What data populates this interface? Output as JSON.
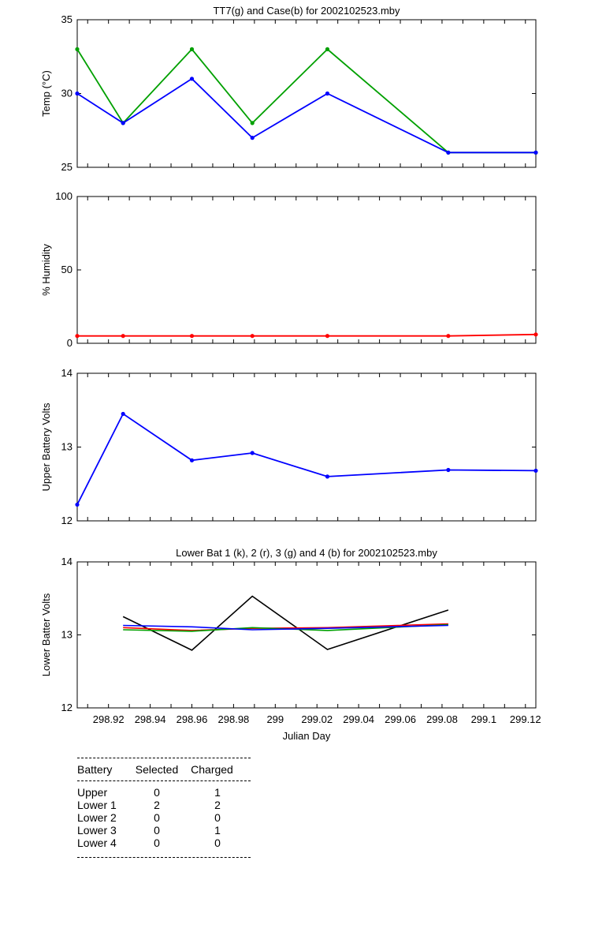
{
  "chart_data": [
    {
      "type": "line",
      "title": "TT7(g) and Case(b) for 2002102523.mby",
      "xlabel": "",
      "ylabel": "Temp  (°C)",
      "xlim": [
        298.905,
        299.125
      ],
      "ylim": [
        25,
        35
      ],
      "yticks": [
        25,
        30,
        35
      ],
      "series": [
        {
          "color": "#00a000",
          "x": [
            298.905,
            298.927,
            298.96,
            298.989,
            299.025,
            299.083,
            299.125
          ],
          "y": [
            33,
            28,
            33,
            28,
            33,
            26,
            26
          ]
        },
        {
          "color": "#0000ff",
          "x": [
            298.905,
            298.927,
            298.96,
            298.989,
            299.025,
            299.083,
            299.125
          ],
          "y": [
            30,
            28,
            31,
            27,
            30,
            26,
            26
          ]
        }
      ]
    },
    {
      "type": "line",
      "title": "",
      "xlabel": "",
      "ylabel": "% Humidity",
      "xlim": [
        298.905,
        299.125
      ],
      "ylim": [
        0,
        100
      ],
      "yticks": [
        0,
        50,
        100
      ],
      "series": [
        {
          "color": "#ff0000",
          "x": [
            298.905,
            298.927,
            298.96,
            298.989,
            299.025,
            299.083,
            299.125
          ],
          "y": [
            5,
            5,
            5,
            5,
            5,
            5,
            6
          ]
        }
      ]
    },
    {
      "type": "line",
      "title": "",
      "xlabel": "",
      "ylabel": "Upper Battery Volts",
      "xlim": [
        298.905,
        299.125
      ],
      "ylim": [
        12,
        14
      ],
      "yticks": [
        12,
        13,
        14
      ],
      "series": [
        {
          "color": "#0000ff",
          "x": [
            298.905,
            298.927,
            298.96,
            298.989,
            299.025,
            299.083,
            299.125
          ],
          "y": [
            12.22,
            13.45,
            12.82,
            12.92,
            12.6,
            12.69,
            12.68
          ]
        }
      ]
    },
    {
      "type": "line",
      "title": "Lower Bat 1 (k), 2 (r), 3 (g) and 4 (b) for 2002102523.mby",
      "xlabel": "Julian Day",
      "ylabel": "Lower Batter Volts",
      "xlim": [
        298.905,
        299.125
      ],
      "ylim": [
        12,
        14
      ],
      "yticks": [
        12,
        13,
        14
      ],
      "xticks": [
        "298.92",
        "298.94",
        "298.96",
        "298.98",
        "299",
        "299.02",
        "299.04",
        "299.06",
        "299.08",
        "299.1",
        "299.12"
      ],
      "series": [
        {
          "color": "#000000",
          "x": [
            298.927,
            298.96,
            298.989,
            299.025,
            299.083
          ],
          "y": [
            13.25,
            12.79,
            13.53,
            12.8,
            13.34
          ]
        },
        {
          "color": "#ff0000",
          "x": [
            298.927,
            298.96,
            298.989,
            299.025,
            299.083
          ],
          "y": [
            13.1,
            13.06,
            13.09,
            13.1,
            13.15
          ]
        },
        {
          "color": "#00a000",
          "x": [
            298.927,
            298.96,
            298.989,
            299.025,
            299.083
          ],
          "y": [
            13.07,
            13.05,
            13.1,
            13.06,
            13.14
          ]
        },
        {
          "color": "#0000ff",
          "x": [
            298.927,
            298.96,
            298.989,
            299.025,
            299.083
          ],
          "y": [
            13.13,
            13.11,
            13.07,
            13.09,
            13.13
          ]
        }
      ]
    }
  ],
  "battery_table": {
    "headers": [
      "Battery",
      "Selected",
      "Charged"
    ],
    "rows": [
      {
        "battery": "Upper",
        "selected": "0",
        "charged": "1"
      },
      {
        "battery": "Lower 1",
        "selected": "2",
        "charged": "2"
      },
      {
        "battery": "Lower 2",
        "selected": "0",
        "charged": "0"
      },
      {
        "battery": "Lower 3",
        "selected": "0",
        "charged": "1"
      },
      {
        "battery": "Lower 4",
        "selected": "0",
        "charged": "0"
      }
    ]
  }
}
